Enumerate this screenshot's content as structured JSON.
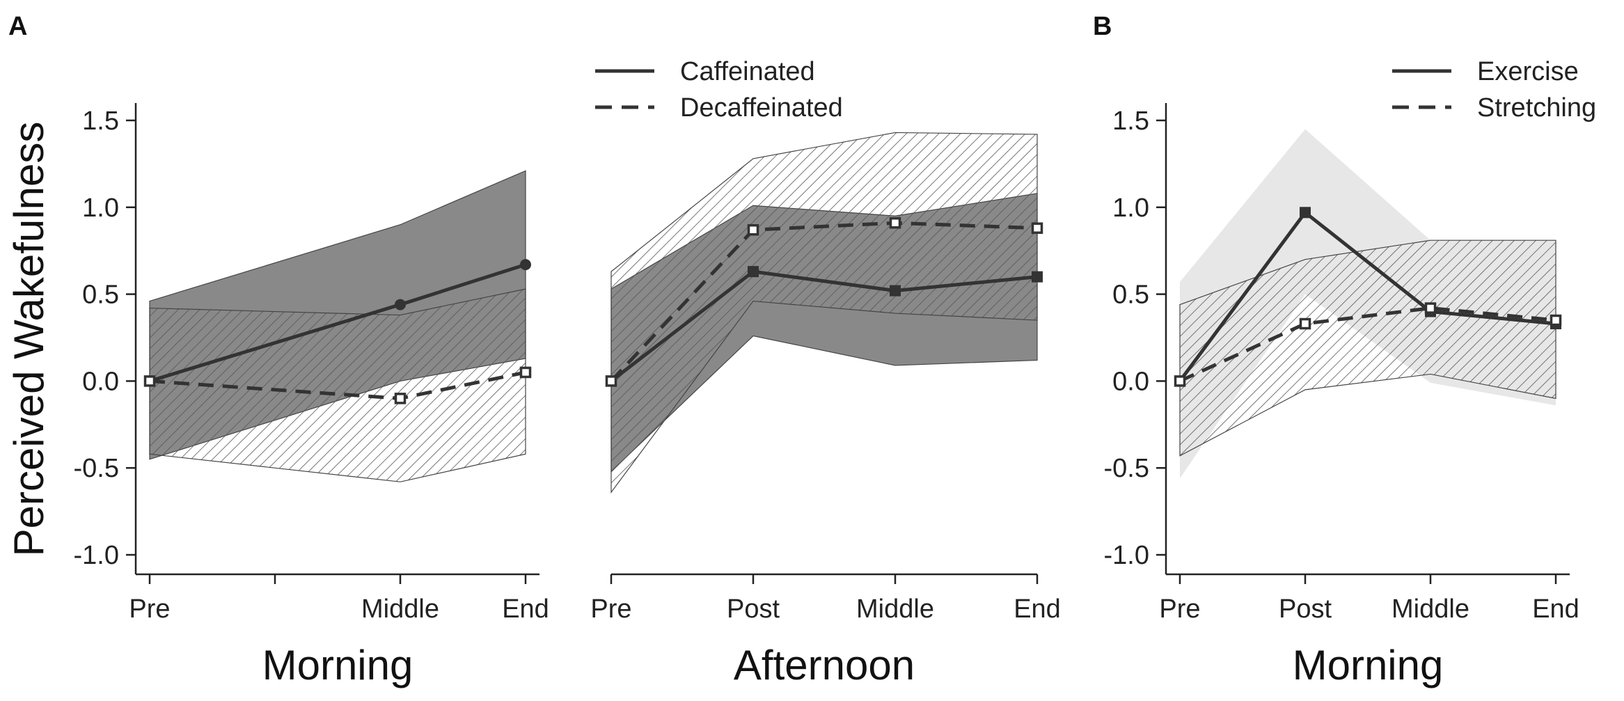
{
  "panel_labels": [
    "A",
    "B"
  ],
  "y_axis_title": "Perceived Wakefulness",
  "y_ticks": [
    "1.5",
    "1.0",
    "0.5",
    "0.0",
    "-0.5",
    "-1.0"
  ],
  "colors": {
    "dark_band": "#7f7f7f",
    "light_band": "#e6e6e6",
    "line": "#333333",
    "hatch": "#555555"
  },
  "chart_data": [
    {
      "type": "line",
      "panel": "A",
      "xlabel": "Morning",
      "ylabel": "Perceived Wakefulness",
      "ylim": [
        -1.1,
        1.6
      ],
      "categories": [
        "Pre",
        "Middle",
        "End"
      ],
      "legend": null,
      "series": [
        {
          "name": "Caffeinated",
          "style": "solid",
          "marker": "filled-circle",
          "band": "dark-solid",
          "x": [
            0,
            2,
            3
          ],
          "values": [
            0.0,
            0.44,
            0.67
          ],
          "lower": [
            -0.45,
            0.0,
            0.13
          ],
          "upper": [
            0.46,
            0.9,
            1.21
          ]
        },
        {
          "name": "Decaffeinated",
          "style": "dashed",
          "marker": "open-square",
          "band": "hatched",
          "x": [
            0,
            2,
            3
          ],
          "values": [
            0.0,
            -0.1,
            0.05
          ],
          "lower": [
            -0.42,
            -0.58,
            -0.42
          ],
          "upper": [
            0.42,
            0.38,
            0.53
          ]
        }
      ],
      "x_positions": [
        0,
        1,
        2,
        3
      ],
      "tick_labels": [
        "Pre",
        "",
        "Middle",
        "End"
      ]
    },
    {
      "type": "line",
      "panel": "A",
      "xlabel": "Afternoon",
      "ylabel": "",
      "ylim": [
        -1.1,
        1.6
      ],
      "categories": [
        "Pre",
        "Post",
        "Middle",
        "End"
      ],
      "legend": {
        "placement": "top",
        "entries": [
          {
            "label": "Caffeinated",
            "style": "solid"
          },
          {
            "label": "Decaffeinated",
            "style": "dashed"
          }
        ]
      },
      "series": [
        {
          "name": "Caffeinated",
          "style": "solid",
          "marker": "filled-square",
          "band": "dark-solid",
          "x": [
            0,
            1,
            2,
            3
          ],
          "values": [
            0.0,
            0.63,
            0.52,
            0.6
          ],
          "lower": [
            -0.52,
            0.26,
            0.09,
            0.12
          ],
          "upper": [
            0.53,
            1.01,
            0.95,
            1.08
          ]
        },
        {
          "name": "Decaffeinated",
          "style": "dashed",
          "marker": "open-square",
          "band": "hatched",
          "x": [
            0,
            1,
            2,
            3
          ],
          "values": [
            0.0,
            0.87,
            0.91,
            0.88
          ],
          "lower": [
            -0.64,
            0.46,
            0.39,
            0.35
          ],
          "upper": [
            0.63,
            1.28,
            1.43,
            1.42
          ]
        }
      ],
      "x_positions": [
        0,
        1,
        2,
        3
      ],
      "tick_labels": [
        "Pre",
        "Post",
        "Middle",
        "End"
      ]
    },
    {
      "type": "line",
      "panel": "B",
      "xlabel": "Morning",
      "ylabel": "",
      "ylim": [
        -1.1,
        1.6
      ],
      "categories": [
        "Pre",
        "Post",
        "Middle",
        "End"
      ],
      "legend": {
        "placement": "top-right",
        "entries": [
          {
            "label": "Exercise",
            "style": "solid"
          },
          {
            "label": "Stretching",
            "style": "dashed"
          }
        ]
      },
      "series": [
        {
          "name": "Exercise",
          "style": "solid",
          "marker": "filled-square",
          "band": "light-solid",
          "x": [
            0,
            1,
            2,
            3
          ],
          "values": [
            0.0,
            0.97,
            0.4,
            0.33
          ],
          "lower": [
            -0.56,
            0.5,
            -0.01,
            -0.14
          ],
          "upper": [
            0.57,
            1.45,
            0.81,
            0.81
          ]
        },
        {
          "name": "Stretching",
          "style": "dashed",
          "marker": "open-square",
          "band": "hatched",
          "x": [
            0,
            1,
            2,
            3
          ],
          "values": [
            0.0,
            0.33,
            0.42,
            0.35
          ],
          "lower": [
            -0.43,
            -0.05,
            0.04,
            -0.1
          ],
          "upper": [
            0.44,
            0.7,
            0.81,
            0.81
          ]
        }
      ],
      "x_positions": [
        0,
        1,
        2,
        3
      ],
      "tick_labels": [
        "Pre",
        "Post",
        "Middle",
        "End"
      ]
    }
  ]
}
